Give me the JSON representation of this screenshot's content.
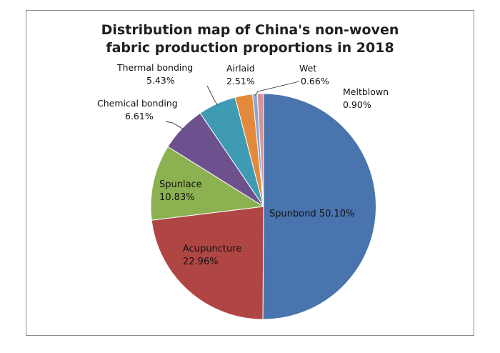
{
  "chart_data": {
    "type": "pie",
    "title": [
      "Distribution map of China's non-woven",
      "fabric production proportions in 2018"
    ],
    "slices": [
      {
        "name": "Spunbond",
        "value": 50.1,
        "label": "Spunbond 50.10%",
        "color": "#4a74ae"
      },
      {
        "name": "Acupuncture",
        "value": 22.96,
        "label": "22.96%",
        "color": "#b04643"
      },
      {
        "name": "Spunlace",
        "value": 10.83,
        "label": "10.83%",
        "color": "#8cb150"
      },
      {
        "name": "Chemical bonding",
        "value": 6.61,
        "label": "6.61%",
        "color": "#6d518e"
      },
      {
        "name": "Thermal bonding",
        "value": 5.43,
        "label": "5.43%",
        "color": "#3f9ab3"
      },
      {
        "name": "Airlaid",
        "value": 2.51,
        "label": "2.51%",
        "color": "#e3893b"
      },
      {
        "name": "Wet",
        "value": 0.66,
        "label": "0.66%",
        "color": "#8ba7d3"
      },
      {
        "name": "Meltblown",
        "value": 0.9,
        "label": "0.90%",
        "color": "#d49695"
      }
    ]
  }
}
